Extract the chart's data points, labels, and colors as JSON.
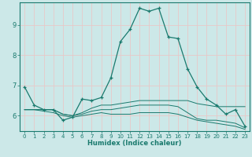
{
  "xlabel": "Humidex (Indice chaleur)",
  "ylabel": "",
  "background_color": "#cce8e8",
  "grid_color": "#e8c8c8",
  "line_color": "#1a7a6e",
  "xlim": [
    -0.5,
    23.5
  ],
  "ylim": [
    5.5,
    9.75
  ],
  "yticks": [
    6,
    7,
    8,
    9
  ],
  "xticks": [
    0,
    1,
    2,
    3,
    4,
    5,
    6,
    7,
    8,
    9,
    10,
    11,
    12,
    13,
    14,
    15,
    16,
    17,
    18,
    19,
    20,
    21,
    22,
    23
  ],
  "series": [
    {
      "x": [
        0,
        1,
        2,
        3,
        4,
        5,
        6,
        7,
        8,
        9,
        10,
        11,
        12,
        13,
        14,
        15,
        16,
        17,
        18,
        19,
        20,
        21,
        22,
        23
      ],
      "y": [
        6.95,
        6.35,
        6.2,
        6.2,
        5.85,
        5.95,
        6.55,
        6.5,
        6.6,
        7.25,
        8.45,
        8.85,
        9.55,
        9.45,
        9.55,
        8.6,
        8.55,
        7.55,
        6.95,
        6.55,
        6.35,
        6.05,
        6.2,
        5.65
      ],
      "has_markers": true
    },
    {
      "x": [
        0,
        1,
        2,
        3,
        4,
        5,
        6,
        7,
        8,
        9,
        10,
        11,
        12,
        13,
        14,
        15,
        16,
        17,
        18,
        19,
        20,
        21,
        22,
        23
      ],
      "y": [
        6.2,
        6.2,
        6.2,
        6.2,
        6.05,
        6.0,
        6.1,
        6.25,
        6.35,
        6.35,
        6.4,
        6.45,
        6.5,
        6.5,
        6.5,
        6.5,
        6.5,
        6.5,
        6.4,
        6.35,
        6.3,
        6.3,
        6.3,
        6.3
      ],
      "has_markers": false
    },
    {
      "x": [
        0,
        1,
        2,
        3,
        4,
        5,
        6,
        7,
        8,
        9,
        10,
        11,
        12,
        13,
        14,
        15,
        16,
        17,
        18,
        19,
        20,
        21,
        22,
        23
      ],
      "y": [
        6.2,
        6.2,
        6.2,
        6.2,
        6.05,
        6.0,
        6.05,
        6.15,
        6.2,
        6.2,
        6.25,
        6.3,
        6.35,
        6.35,
        6.35,
        6.35,
        6.3,
        6.1,
        5.9,
        5.85,
        5.85,
        5.8,
        5.75,
        5.6
      ],
      "has_markers": false
    },
    {
      "x": [
        0,
        1,
        2,
        3,
        4,
        5,
        6,
        7,
        8,
        9,
        10,
        11,
        12,
        13,
        14,
        15,
        16,
        17,
        18,
        19,
        20,
        21,
        22,
        23
      ],
      "y": [
        6.2,
        6.2,
        6.15,
        6.1,
        6.0,
        5.95,
        6.0,
        6.05,
        6.1,
        6.05,
        6.05,
        6.05,
        6.1,
        6.1,
        6.1,
        6.1,
        6.05,
        5.95,
        5.85,
        5.8,
        5.75,
        5.7,
        5.65,
        5.55
      ],
      "has_markers": false
    }
  ]
}
